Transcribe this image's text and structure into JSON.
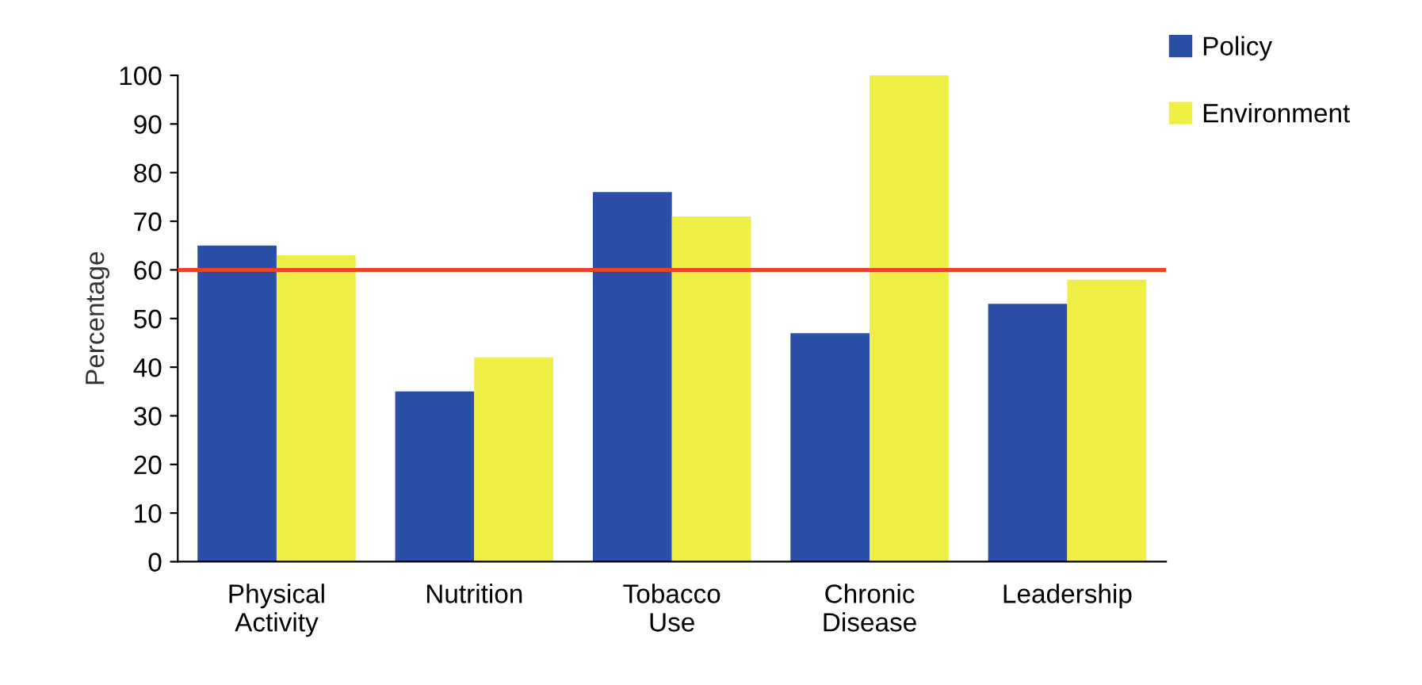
{
  "chart_data": {
    "type": "bar",
    "ylabel": "Percentage",
    "categories": [
      "Physical\nActivity",
      "Nutrition",
      "Tobacco\nUse",
      "Chronic\nDisease",
      "Leadership"
    ],
    "series": [
      {
        "name": "Policy",
        "color": "#2b4ea6",
        "values": [
          65,
          35,
          76,
          47,
          53
        ]
      },
      {
        "name": "Environment",
        "color": "#eeee44",
        "values": [
          63,
          42,
          71,
          100,
          58
        ]
      }
    ],
    "ylim": [
      0,
      100
    ],
    "yticks": [
      0,
      10,
      20,
      30,
      40,
      50,
      60,
      70,
      80,
      90,
      100
    ],
    "grid": false,
    "legend": "top right",
    "ref_lines": [
      {
        "axis": "y",
        "value": 60,
        "color": "#e8442c"
      }
    ]
  }
}
